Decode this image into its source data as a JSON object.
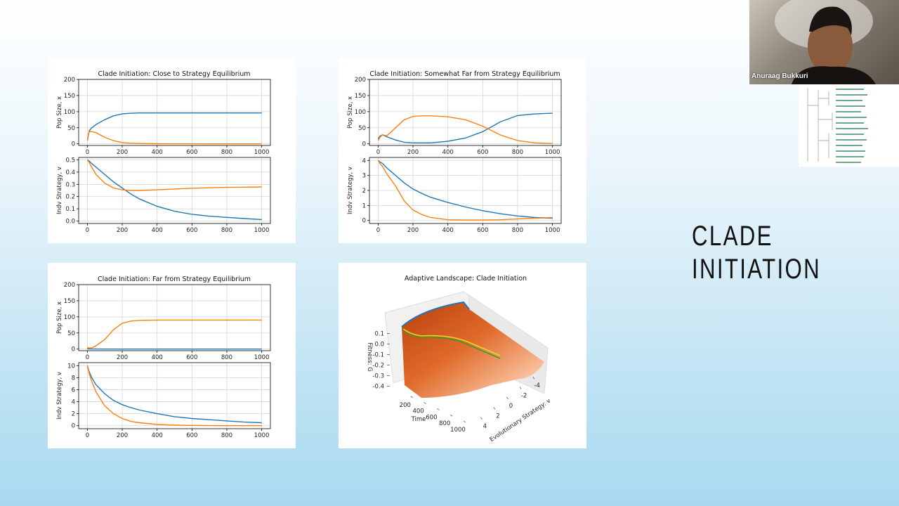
{
  "slide": {
    "title_lines": [
      "CLADE",
      "INITIATION"
    ]
  },
  "video": {
    "name": "Anuraag Bukkuri"
  },
  "chart_data": [
    {
      "type": "line",
      "title": "Clade Initiation: Close to Strategy Equilibrium",
      "subplots": [
        {
          "ylabel": "Pop Size, x",
          "xlim": [
            -50,
            1050
          ],
          "ylim": [
            -5,
            200
          ],
          "xticks": [
            0,
            200,
            400,
            600,
            800,
            1000
          ],
          "yticks": [
            0,
            50,
            100,
            150,
            200
          ],
          "grid": true,
          "x": [
            0,
            10,
            25,
            50,
            100,
            150,
            200,
            250,
            300,
            400,
            500,
            600,
            700,
            800,
            900,
            1000
          ],
          "series": [
            {
              "color": "#1f77b4",
              "values": [
                10,
                40,
                50,
                60,
                75,
                87,
                93,
                95,
                96,
                96,
                96,
                96,
                96,
                96,
                96,
                96
              ]
            },
            {
              "color": "#ff7f0e",
              "values": [
                10,
                38,
                38,
                35,
                20,
                10,
                4,
                2,
                1,
                0.5,
                0.3,
                0.2,
                0.1,
                0.1,
                0.1,
                0.1
              ]
            }
          ]
        },
        {
          "ylabel": "Indv Strategy, v",
          "xlim": [
            -50,
            1050
          ],
          "ylim": [
            -0.02,
            0.52
          ],
          "xticks": [
            0,
            200,
            400,
            600,
            800,
            1000
          ],
          "yticks": [
            {
              "value": 0,
              "label": "0.0"
            },
            0.1,
            0.2,
            0.3,
            0.4,
            0.5
          ],
          "grid": true,
          "x": [
            0,
            10,
            25,
            50,
            100,
            150,
            200,
            250,
            300,
            400,
            500,
            600,
            700,
            800,
            900,
            1000
          ],
          "series": [
            {
              "color": "#1f77b4",
              "values": [
                0.5,
                0.49,
                0.47,
                0.44,
                0.38,
                0.32,
                0.27,
                0.22,
                0.18,
                0.12,
                0.08,
                0.055,
                0.04,
                0.03,
                0.02,
                0.012
              ]
            },
            {
              "color": "#ff7f0e",
              "values": [
                0.5,
                0.48,
                0.44,
                0.38,
                0.31,
                0.27,
                0.255,
                0.25,
                0.25,
                0.255,
                0.262,
                0.268,
                0.272,
                0.275,
                0.277,
                0.279
              ]
            }
          ]
        }
      ]
    },
    {
      "type": "line",
      "title": "Clade Initiation: Somewhat Far from Strategy Equilibrium",
      "subplots": [
        {
          "ylabel": "Pop Size, x",
          "xlim": [
            -50,
            1050
          ],
          "ylim": [
            -5,
            200
          ],
          "xticks": [
            0,
            200,
            400,
            600,
            800,
            1000
          ],
          "yticks": [
            0,
            50,
            100,
            150,
            200
          ],
          "grid": true,
          "x": [
            0,
            10,
            25,
            50,
            100,
            150,
            200,
            250,
            300,
            400,
            500,
            600,
            700,
            800,
            900,
            1000
          ],
          "series": [
            {
              "color": "#1f77b4",
              "values": [
                15,
                24,
                28,
                22,
                12,
                5,
                3,
                3,
                3,
                8,
                18,
                38,
                68,
                88,
                93,
                95
              ]
            },
            {
              "color": "#ff7f0e",
              "values": [
                10,
                20,
                28,
                25,
                50,
                75,
                85,
                87,
                87,
                84,
                75,
                55,
                28,
                10,
                3,
                1
              ]
            }
          ]
        },
        {
          "ylabel": "Indv Strategy, v",
          "xlim": [
            -50,
            1050
          ],
          "ylim": [
            -0.2,
            4.2
          ],
          "xticks": [
            0,
            200,
            400,
            600,
            800,
            1000
          ],
          "yticks": [
            0,
            1,
            2,
            3,
            4
          ],
          "grid": true,
          "x": [
            0,
            10,
            25,
            50,
            100,
            150,
            200,
            250,
            300,
            400,
            500,
            600,
            700,
            800,
            900,
            1000
          ],
          "series": [
            {
              "color": "#1f77b4",
              "values": [
                4,
                3.9,
                3.8,
                3.5,
                3.0,
                2.5,
                2.1,
                1.8,
                1.55,
                1.2,
                0.9,
                0.65,
                0.45,
                0.3,
                0.2,
                0.15
              ]
            },
            {
              "color": "#ff7f0e",
              "values": [
                4,
                3.8,
                3.6,
                3.1,
                2.3,
                1.3,
                0.7,
                0.4,
                0.2,
                0.05,
                0.03,
                0.03,
                0.05,
                0.1,
                0.15,
                0.2
              ]
            }
          ]
        }
      ]
    },
    {
      "type": "line",
      "title": "Clade Initiation: Far from Strategy Equilibrium",
      "subplots": [
        {
          "ylabel": "Pop Size, x",
          "xlim": [
            -50,
            1050
          ],
          "ylim": [
            -5,
            200
          ],
          "xticks": [
            0,
            200,
            400,
            600,
            800,
            1000
          ],
          "yticks": [
            0,
            50,
            100,
            150,
            200
          ],
          "grid": true,
          "x": [
            0,
            10,
            25,
            50,
            100,
            150,
            200,
            250,
            300,
            400,
            500,
            600,
            700,
            800,
            900,
            1000
          ],
          "series": [
            {
              "color": "#1f77b4",
              "values": [
                1,
                0.5,
                0.3,
                0.2,
                0.1,
                0.1,
                0.1,
                0.1,
                0.1,
                0.1,
                0.1,
                0.1,
                0.1,
                0.1,
                0.1,
                0.1
              ]
            },
            {
              "color": "#ff7f0e",
              "values": [
                5,
                3,
                4,
                10,
                30,
                60,
                80,
                87,
                89,
                90,
                90,
                90,
                90,
                90,
                90,
                90
              ]
            }
          ]
        },
        {
          "ylabel": "Indv Strategy, v",
          "xlim": [
            -50,
            1050
          ],
          "ylim": [
            -0.5,
            10.5
          ],
          "xticks": [
            0,
            200,
            400,
            600,
            800,
            1000
          ],
          "yticks": [
            0,
            2,
            4,
            6,
            8,
            10
          ],
          "grid": true,
          "x": [
            0,
            10,
            25,
            50,
            100,
            150,
            200,
            250,
            300,
            400,
            500,
            600,
            700,
            800,
            900,
            1000
          ],
          "series": [
            {
              "color": "#1f77b4",
              "values": [
                10,
                9,
                8,
                6.8,
                5.3,
                4.2,
                3.5,
                3.0,
                2.6,
                2.0,
                1.5,
                1.2,
                1.0,
                0.8,
                0.6,
                0.5
              ]
            },
            {
              "color": "#ff7f0e",
              "values": [
                10,
                8.7,
                7.4,
                5.6,
                3.3,
                2.0,
                1.2,
                0.7,
                0.5,
                0.2,
                0.1,
                0.05,
                0.02,
                0,
                0,
                0
              ]
            }
          ]
        }
      ]
    },
    {
      "type": "surface3d",
      "title": "Adaptive Landscape: Clade Initiation",
      "xlabel": "Time",
      "ylabel": "Evolutionary Strategy: v",
      "zlabel": "Fitness: G",
      "xlim": [
        0,
        1000
      ],
      "xticks": [
        200,
        400,
        600,
        800,
        1000
      ],
      "ylim": [
        5,
        -5
      ],
      "yticks": [
        4,
        2,
        0,
        -2,
        -4
      ],
      "zlim": [
        0.15,
        -0.45
      ],
      "zticks": [
        0.1,
        {
          "value": 0,
          "label": "0.0"
        },
        -0.1,
        -0.2,
        -0.3,
        -0.4
      ]
    }
  ]
}
